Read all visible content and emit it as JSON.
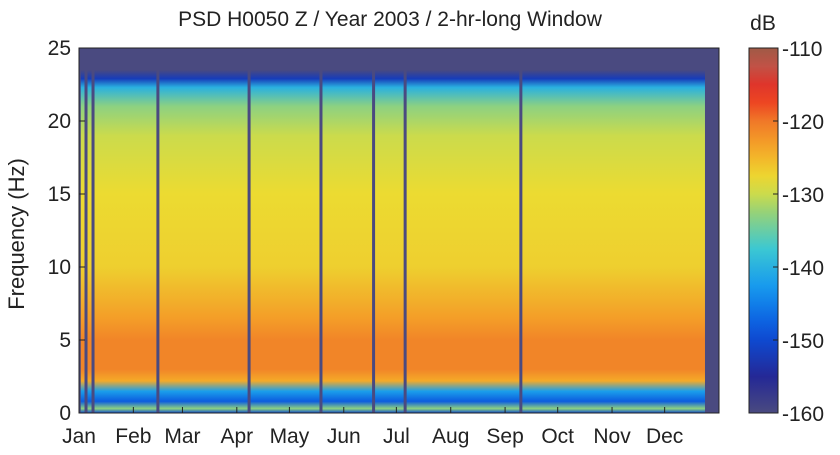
{
  "chart_data": {
    "type": "heatmap",
    "title": "PSD H0050 Z / Year 2003 / 2-hr-long Window",
    "xlabel": "",
    "ylabel": "Frequency (Hz)",
    "x_ticks": [
      "Jan",
      "Feb",
      "Mar",
      "Apr",
      "May",
      "Jun",
      "Jul",
      "Aug",
      "Sep",
      "Oct",
      "Nov",
      "Dec"
    ],
    "x_tick_day_of_year": [
      1,
      32,
      60,
      91,
      121,
      152,
      182,
      213,
      244,
      274,
      305,
      335
    ],
    "xlim_day_of_year": [
      1,
      366
    ],
    "ylim": [
      0,
      25
    ],
    "y_ticks": [
      0,
      5,
      10,
      15,
      20,
      25
    ],
    "colorbar": {
      "label": "dB",
      "range": [
        -160,
        -110
      ],
      "ticks": [
        -110,
        -120,
        -130,
        -140,
        -150,
        -160
      ],
      "colormap": "jet"
    },
    "data_gaps_day_of_year": [
      5,
      9,
      46,
      98,
      139,
      169,
      187,
      253
    ],
    "frequency_profile": [
      {
        "frequency_hz": 0.0,
        "psd_db": -150
      },
      {
        "frequency_hz": 0.3,
        "psd_db": -133
      },
      {
        "frequency_hz": 0.8,
        "psd_db": -148
      },
      {
        "frequency_hz": 1.5,
        "psd_db": -142
      },
      {
        "frequency_hz": 2.2,
        "psd_db": -124
      },
      {
        "frequency_hz": 3.0,
        "psd_db": -121
      },
      {
        "frequency_hz": 5.0,
        "psd_db": -121
      },
      {
        "frequency_hz": 6.5,
        "psd_db": -123
      },
      {
        "frequency_hz": 10.0,
        "psd_db": -127
      },
      {
        "frequency_hz": 15.0,
        "psd_db": -128
      },
      {
        "frequency_hz": 19.0,
        "psd_db": -130
      },
      {
        "frequency_hz": 21.0,
        "psd_db": -133
      },
      {
        "frequency_hz": 22.3,
        "psd_db": -140
      },
      {
        "frequency_hz": 22.9,
        "psd_db": -152
      },
      {
        "frequency_hz": 23.5,
        "psd_db": -160
      },
      {
        "frequency_hz": 25.0,
        "psd_db": -160
      }
    ],
    "background_db": -160,
    "colors": {
      "background": "#4a4a80",
      "axis": "#222222"
    }
  }
}
